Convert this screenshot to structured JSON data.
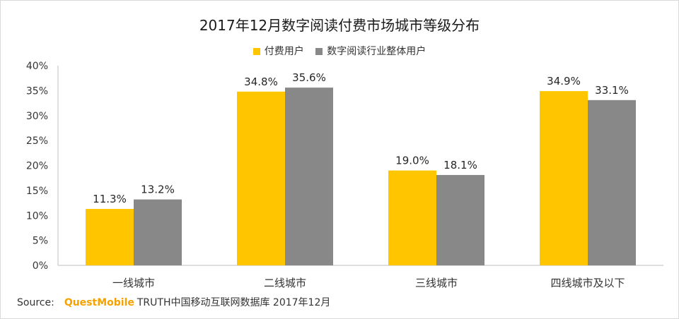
{
  "chart_data": {
    "type": "bar",
    "title": "2017年12月数字阅读付费市场城市等级分布",
    "categories": [
      "一线城市",
      "二线城市",
      "三线城市",
      "四线城市及以下"
    ],
    "series": [
      {
        "name": "付费用户",
        "values": [
          11.3,
          34.8,
          19.0,
          34.9
        ],
        "labels": [
          "11.3%",
          "34.8%",
          "19.0%",
          "34.9%"
        ],
        "color": "#ffc600"
      },
      {
        "name": "数字阅读行业整体用户",
        "values": [
          13.2,
          35.6,
          18.1,
          33.1
        ],
        "labels": [
          "13.2%",
          "35.6%",
          "18.1%",
          "33.1%"
        ],
        "color": "#888888"
      }
    ],
    "yticks": [
      "0%",
      "5%",
      "10%",
      "15%",
      "20%",
      "25%",
      "30%",
      "35%",
      "40%"
    ],
    "ylim": [
      0,
      40
    ],
    "xlabel": "",
    "ylabel": "",
    "legend_position": "top-center",
    "grid": false
  },
  "source": {
    "label": "Source:",
    "brand": "QuestMobile",
    "text": "TRUTH中国移动互联网数据库 2017年12月"
  }
}
